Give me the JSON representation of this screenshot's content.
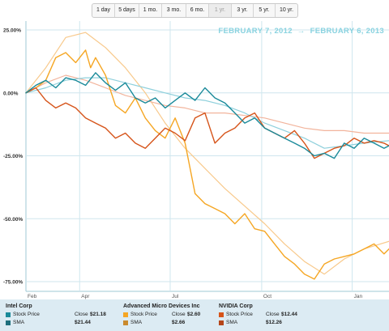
{
  "range_buttons": [
    "1 day",
    "5 days",
    "1 mo.",
    "3 mo.",
    "6 mo.",
    "1 yr.",
    "3 yr.",
    "5 yr.",
    "10 yr."
  ],
  "active_range": "1 yr.",
  "date_range": {
    "start": "FEBRUARY 7, 2012",
    "arrow": "→",
    "end": "FEBRUARY 6, 2013"
  },
  "colors": {
    "intel_price": "#1a8a9a",
    "intel_sma": "#8fd0dc",
    "amd_price": "#f5a623",
    "amd_sma": "#f8c98b",
    "nvda_price": "#d6541a",
    "nvda_sma": "#f2b49c",
    "grid": "#cfe6ee",
    "legend_bg": "#dcebf3"
  },
  "chart_data": {
    "type": "line",
    "ylabel": "",
    "ylim": [
      -80,
      30
    ],
    "y_ticks": [
      25,
      0,
      -25,
      -50,
      -75
    ],
    "y_tick_labels": [
      "25.00%",
      "0.00%",
      "-25.00%",
      "-50.00%",
      "-75.00%"
    ],
    "xlim": [
      0,
      365
    ],
    "x_ticks": [
      0,
      54,
      145,
      237,
      328
    ],
    "x_tick_labels": [
      "Feb",
      "Apr",
      "Jul",
      "Oct",
      "Jan"
    ],
    "grid": true,
    "series": [
      {
        "name": "Intel Corp Stock Price",
        "key": "intel_price",
        "x": [
          0,
          10,
          20,
          30,
          40,
          50,
          60,
          70,
          80,
          90,
          100,
          110,
          120,
          130,
          140,
          150,
          160,
          170,
          180,
          190,
          200,
          210,
          220,
          230,
          240,
          250,
          260,
          270,
          280,
          290,
          300,
          310,
          320,
          330,
          340,
          350,
          360,
          365
        ],
        "values": [
          0,
          3,
          5,
          2,
          6,
          5,
          3,
          8,
          4,
          1,
          4,
          -2,
          -4,
          -2,
          -6,
          -3,
          0,
          -3,
          2,
          -2,
          -4,
          -8,
          -12,
          -10,
          -14,
          -16,
          -18,
          -20,
          -22,
          -25,
          -24,
          -26,
          -20,
          -22,
          -18,
          -20,
          -22,
          -21
        ]
      },
      {
        "name": "Intel Corp SMA",
        "key": "intel_sma",
        "x": [
          0,
          20,
          40,
          60,
          80,
          100,
          120,
          140,
          160,
          180,
          200,
          220,
          240,
          260,
          280,
          300,
          320,
          340,
          365
        ],
        "values": [
          0,
          2,
          5,
          6,
          6,
          4,
          2,
          0,
          -2,
          -3,
          -5,
          -8,
          -12,
          -15,
          -18,
          -22,
          -21,
          -20,
          -19
        ]
      },
      {
        "name": "Advanced Micro Devices Inc Stock Price",
        "key": "amd_price",
        "x": [
          0,
          10,
          20,
          30,
          40,
          50,
          60,
          65,
          70,
          80,
          90,
          100,
          110,
          120,
          130,
          140,
          150,
          160,
          170,
          180,
          190,
          200,
          210,
          220,
          230,
          240,
          250,
          260,
          270,
          280,
          290,
          300,
          310,
          320,
          330,
          340,
          350,
          360,
          365
        ],
        "values": [
          0,
          2,
          5,
          14,
          16,
          12,
          17,
          10,
          14,
          7,
          -5,
          -8,
          -2,
          -10,
          -15,
          -18,
          -10,
          -20,
          -40,
          -44,
          -46,
          -48,
          -52,
          -48,
          -54,
          -55,
          -60,
          -65,
          -68,
          -72,
          -74,
          -68,
          -66,
          -65,
          -64,
          -62,
          -60,
          -64,
          -62
        ]
      },
      {
        "name": "Advanced Micro Devices Inc SMA",
        "key": "amd_sma",
        "x": [
          0,
          20,
          40,
          60,
          80,
          100,
          120,
          140,
          160,
          180,
          200,
          220,
          240,
          260,
          280,
          300,
          320,
          340,
          365
        ],
        "values": [
          0,
          10,
          22,
          24,
          18,
          10,
          0,
          -12,
          -22,
          -30,
          -38,
          -45,
          -52,
          -60,
          -67,
          -72,
          -66,
          -62,
          -59
        ]
      },
      {
        "name": "NVIDIA Corp Stock Price",
        "key": "nvda_price",
        "x": [
          0,
          10,
          20,
          30,
          40,
          50,
          60,
          70,
          80,
          90,
          100,
          110,
          120,
          130,
          140,
          150,
          160,
          170,
          180,
          190,
          200,
          210,
          220,
          230,
          240,
          250,
          260,
          270,
          280,
          290,
          300,
          310,
          320,
          330,
          340,
          350,
          360,
          365
        ],
        "values": [
          0,
          2,
          -3,
          -6,
          -4,
          -6,
          -10,
          -12,
          -14,
          -18,
          -16,
          -20,
          -22,
          -18,
          -14,
          -16,
          -19,
          -10,
          -8,
          -20,
          -16,
          -14,
          -10,
          -8,
          -14,
          -16,
          -18,
          -15,
          -20,
          -26,
          -24,
          -22,
          -21,
          -18,
          -20,
          -19,
          -20,
          -21
        ]
      },
      {
        "name": "NVIDIA Corp SMA",
        "key": "nvda_sma",
        "x": [
          0,
          20,
          40,
          60,
          80,
          100,
          120,
          140,
          160,
          180,
          200,
          220,
          240,
          260,
          280,
          300,
          320,
          340,
          365
        ],
        "values": [
          0,
          4,
          7,
          5,
          2,
          -1,
          -3,
          -5,
          -6,
          -8,
          -8,
          -9,
          -10,
          -12,
          -14,
          -15,
          -15,
          -16,
          -16
        ]
      }
    ]
  },
  "legend": [
    {
      "company": "Intel Corp",
      "price_label": "Stock Price",
      "close_label": "Close",
      "close_value": "$21.18",
      "sma_label": "SMA",
      "sma_value": "$21.44"
    },
    {
      "company": "Advanced Micro Devices Inc",
      "price_label": "Stock Price",
      "close_label": "Close",
      "close_value": "$2.60",
      "sma_label": "SMA",
      "sma_value": "$2.66"
    },
    {
      "company": "NVIDIA Corp",
      "price_label": "Stock Price",
      "close_label": "Close",
      "close_value": "$12.44",
      "sma_label": "SMA",
      "sma_value": "$12.26"
    }
  ]
}
